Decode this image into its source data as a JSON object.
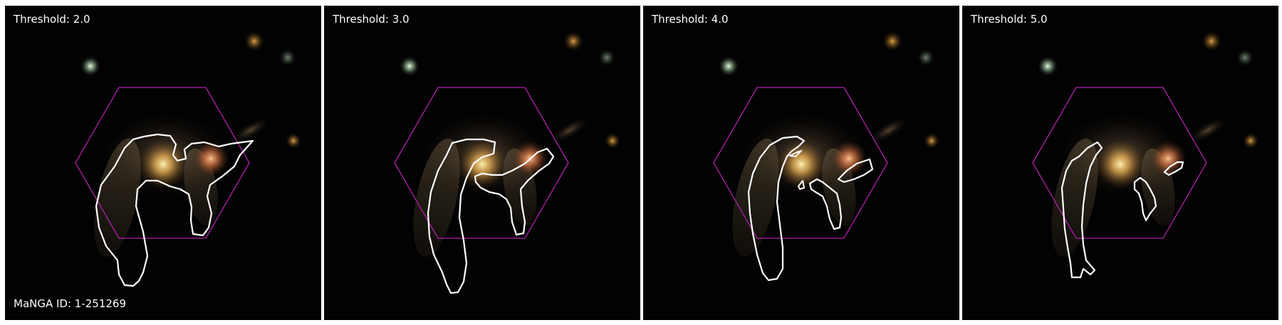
{
  "panels": [
    {
      "threshold_label": "Threshold: 2.0",
      "threshold": 2.0
    },
    {
      "threshold_label": "Threshold: 3.0",
      "threshold": 3.0
    },
    {
      "threshold_label": "Threshold: 4.0",
      "threshold": 4.0
    },
    {
      "threshold_label": "Threshold: 5.0",
      "threshold": 5.0
    }
  ],
  "manga_id_label": "MaNGA ID: 1-251269",
  "colors": {
    "background": "#000000",
    "contour": "#ffffff",
    "hexagon": "#b020b0",
    "galaxy_core": "#f5c060",
    "companion_core": "#f09050",
    "star_green": "#b8d8b0",
    "star_orange": "#c89030"
  }
}
